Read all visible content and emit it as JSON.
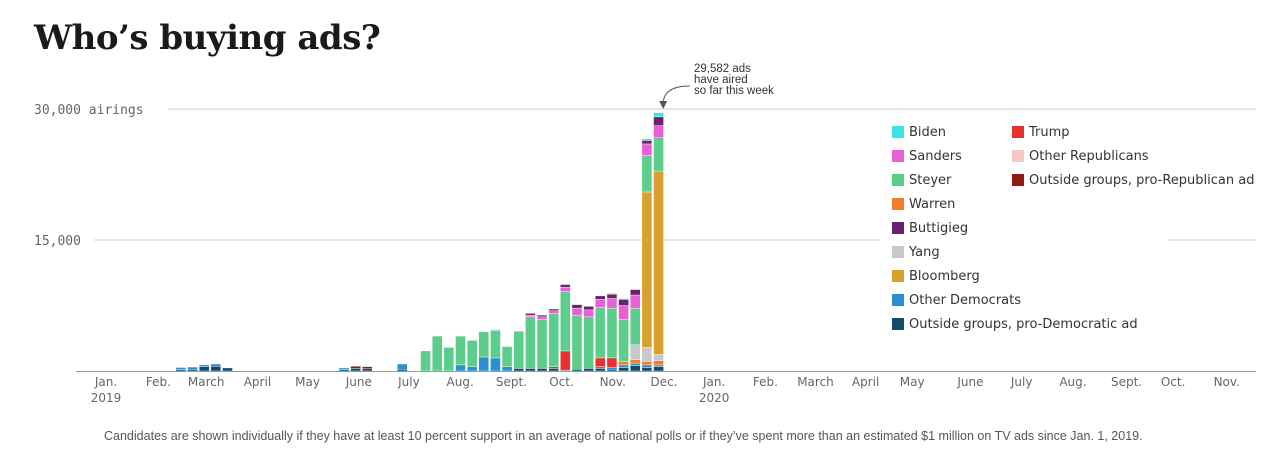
{
  "title": "Who’s buying ads?",
  "footnote": "Candidates are shown individually if they have at least 10 percent support in an average of national polls or if they’ve spent more than an estimated $1 million on TV ads since Jan. 1, 2019.",
  "chart_data": {
    "type": "bar",
    "stacked": true,
    "ylabel": "airings",
    "ylim": [
      0,
      30000
    ],
    "y_ticks": [
      {
        "value": 30000,
        "label": "30,000 airings"
      },
      {
        "value": 15000,
        "label": "15,000"
      }
    ],
    "grid": true,
    "legend_position": "top-right",
    "x_ticks": [
      {
        "week": 0,
        "label": "Jan.",
        "sub": "2019"
      },
      {
        "week": 4.5,
        "label": "Feb.",
        "sub": ""
      },
      {
        "week": 8.6,
        "label": "March",
        "sub": ""
      },
      {
        "week": 13,
        "label": "April",
        "sub": ""
      },
      {
        "week": 17.3,
        "label": "May",
        "sub": ""
      },
      {
        "week": 21.7,
        "label": "June",
        "sub": ""
      },
      {
        "week": 26,
        "label": "July",
        "sub": ""
      },
      {
        "week": 30.4,
        "label": "Aug.",
        "sub": ""
      },
      {
        "week": 34.8,
        "label": "Sept.",
        "sub": ""
      },
      {
        "week": 39.1,
        "label": "Oct.",
        "sub": ""
      },
      {
        "week": 43.5,
        "label": "Nov.",
        "sub": ""
      },
      {
        "week": 47.9,
        "label": "Dec.",
        "sub": ""
      },
      {
        "week": 52.2,
        "label": "Jan.",
        "sub": "2020"
      },
      {
        "week": 56.6,
        "label": "Feb.",
        "sub": ""
      },
      {
        "week": 60.9,
        "label": "March",
        "sub": ""
      },
      {
        "week": 65.2,
        "label": "April",
        "sub": ""
      },
      {
        "week": 69.2,
        "label": "May",
        "sub": ""
      },
      {
        "week": 74.2,
        "label": "June",
        "sub": ""
      },
      {
        "week": 78.6,
        "label": "July",
        "sub": ""
      },
      {
        "week": 83,
        "label": "Aug.",
        "sub": ""
      },
      {
        "week": 87.6,
        "label": "Sept.",
        "sub": ""
      },
      {
        "week": 91.6,
        "label": "Oct.",
        "sub": ""
      },
      {
        "week": 96.2,
        "label": "Nov.",
        "sub": ""
      }
    ],
    "annotation": {
      "week": 48,
      "lines": [
        "29,582 ads",
        "have aired",
        "so far this week"
      ]
    },
    "series": [
      {
        "name": "Outside groups, pro-Democratic ad",
        "color": "#0f4d6b"
      },
      {
        "name": "Other Democrats",
        "color": "#2b8fd0"
      },
      {
        "name": "Trump",
        "color": "#e8322d"
      },
      {
        "name": "Outside groups, pro-Republican ad",
        "color": "#8f1a12"
      },
      {
        "name": "Other Republicans",
        "color": "#f4c7c0"
      },
      {
        "name": "Warren",
        "color": "#f07d2a"
      },
      {
        "name": "Yang",
        "color": "#c9c9c9"
      },
      {
        "name": "Bloomberg",
        "color": "#d8a12f"
      },
      {
        "name": "Steyer",
        "color": "#5ccd8a"
      },
      {
        "name": "Sanders",
        "color": "#e85fd6"
      },
      {
        "name": "Buttigieg",
        "color": "#6e1f6e"
      },
      {
        "name": "Biden",
        "color": "#3de4e4"
      }
    ],
    "legend_items": [
      {
        "name": "Biden",
        "color": "#3de4e4"
      },
      {
        "name": "Sanders",
        "color": "#e85fd6"
      },
      {
        "name": "Steyer",
        "color": "#5ccd8a"
      },
      {
        "name": "Warren",
        "color": "#f07d2a"
      },
      {
        "name": "Buttigieg",
        "color": "#6e1f6e"
      },
      {
        "name": "Yang",
        "color": "#c9c9c9"
      },
      {
        "name": "Bloomberg",
        "color": "#d8a12f"
      },
      {
        "name": "Other Democrats",
        "color": "#2b8fd0"
      },
      {
        "name": "Outside groups, pro-Democratic ad",
        "color": "#0f4d6b"
      },
      {
        "name": "Trump",
        "color": "#e8322d"
      },
      {
        "name": "Other Republicans",
        "color": "#f4c7c0"
      },
      {
        "name": "Outside groups, pro-Republican ad",
        "color": "#8f1a12"
      }
    ],
    "weeks": [
      {
        "w": 6,
        "v": {
          "Outside groups, pro-Democratic ad": 150,
          "Other Democrats": 250
        }
      },
      {
        "w": 7,
        "v": {
          "Outside groups, pro-Democratic ad": 200,
          "Other Democrats": 250
        }
      },
      {
        "w": 8,
        "v": {
          "Outside groups, pro-Democratic ad": 500,
          "Other Democrats": 200
        }
      },
      {
        "w": 9,
        "v": {
          "Outside groups, pro-Democratic ad": 550,
          "Other Democrats": 250
        }
      },
      {
        "w": 10,
        "v": {
          "Outside groups, pro-Democratic ad": 350
        }
      },
      {
        "w": 20,
        "v": {
          "Other Democrats": 200,
          "Outside groups, pro-Democratic ad": 150
        }
      },
      {
        "w": 21,
        "v": {
          "Outside groups, pro-Democratic ad": 300,
          "Outside groups, pro-Republican ad": 250
        }
      },
      {
        "w": 22,
        "v": {
          "Outside groups, pro-Democratic ad": 250,
          "Outside groups, pro-Republican ad": 250
        }
      },
      {
        "w": 25,
        "v": {
          "Other Democrats": 600,
          "Outside groups, pro-Democratic ad": 200
        }
      },
      {
        "w": 27,
        "v": {
          "Steyer": 2300
        }
      },
      {
        "w": 28,
        "v": {
          "Steyer": 4000
        }
      },
      {
        "w": 29,
        "v": {
          "Steyer": 2700
        }
      },
      {
        "w": 30,
        "v": {
          "Other Democrats": 700,
          "Steyer": 3300
        }
      },
      {
        "w": 31,
        "v": {
          "Other Democrats": 500,
          "Steyer": 3000
        }
      },
      {
        "w": 32,
        "v": {
          "Other Democrats": 1600,
          "Steyer": 2900
        }
      },
      {
        "w": 33,
        "v": {
          "Other Democrats": 1500,
          "Steyer": 3100,
          "Biden": 150
        }
      },
      {
        "w": 34,
        "v": {
          "Other Democrats": 500,
          "Steyer": 2300
        }
      },
      {
        "w": 35,
        "v": {
          "Steyer": 4200,
          "Outside groups, pro-Democratic ad": 300,
          "Sanders": 100
        }
      },
      {
        "w": 36,
        "v": {
          "Outside groups, pro-Democratic ad": 300,
          "Steyer": 5900,
          "Buttigieg": 200,
          "Sanders": 200
        }
      },
      {
        "w": 37,
        "v": {
          "Outside groups, pro-Democratic ad": 300,
          "Steyer": 5600,
          "Sanders": 300,
          "Buttigieg": 200
        }
      },
      {
        "w": 38,
        "v": {
          "Outside groups, pro-Democratic ad": 300,
          "Trump": 200,
          "Steyer": 6100,
          "Sanders": 300,
          "Buttigieg": 200
        }
      },
      {
        "w": 39,
        "v": {
          "Trump": 2200,
          "Outside groups, pro-Democratic ad": 100,
          "Steyer": 6800,
          "Sanders": 500,
          "Buttigieg": 300
        }
      },
      {
        "w": 40,
        "v": {
          "Outside groups, pro-Democratic ad": 200,
          "Steyer": 6200,
          "Sanders": 800,
          "Buttigieg": 400
        }
      },
      {
        "w": 41,
        "v": {
          "Outside groups, pro-Democratic ad": 300,
          "Steyer": 5900,
          "Sanders": 800,
          "Buttigieg": 400
        }
      },
      {
        "w": 42,
        "v": {
          "Outside groups, pro-Democratic ad": 300,
          "Trump": 1000,
          "Other Democrats": 200,
          "Steyer": 5800,
          "Sanders": 900,
          "Buttigieg": 400
        }
      },
      {
        "w": 43,
        "v": {
          "Outside groups, pro-Democratic ad": 200,
          "Trump": 1100,
          "Other Democrats": 200,
          "Steyer": 5700,
          "Sanders": 1100,
          "Buttigieg": 500,
          "Biden": 100
        }
      },
      {
        "w": 44,
        "v": {
          "Outside groups, pro-Democratic ad": 400,
          "Other Democrats": 300,
          "Warren": 400,
          "Steyer": 4800,
          "Sanders": 1600,
          "Buttigieg": 700,
          "Biden": 100
        }
      },
      {
        "w": 45,
        "v": {
          "Outside groups, pro-Democratic ad": 600,
          "Other Democrats": 300,
          "Yang": 1700,
          "Warren": 400,
          "Steyer": 4200,
          "Sanders": 1500,
          "Buttigieg": 600,
          "Biden": 100
        }
      },
      {
        "w": 46,
        "v": {
          "Outside groups, pro-Democratic ad": 400,
          "Other Democrats": 300,
          "Yang": 1600,
          "Warren": 400,
          "Steyer": 4200,
          "Bloomberg": 17800,
          "Sanders": 1300,
          "Buttigieg": 400,
          "Biden": 200
        }
      },
      {
        "w": 47,
        "v": {
          "Outside groups, pro-Democratic ad": 500,
          "Other Democrats": 200,
          "Yang": 700,
          "Warren": 500,
          "Steyer": 3800,
          "Bloomberg": 21000,
          "Sanders": 1400,
          "Buttigieg": 1000,
          "Biden": 482
        }
      }
    ]
  }
}
